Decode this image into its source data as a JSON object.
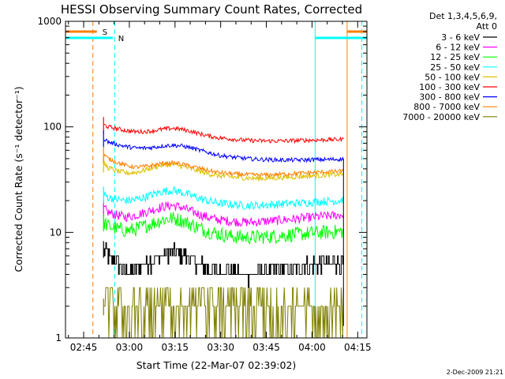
{
  "chart_data": {
    "type": "line",
    "title": "HESSI Observing Summary Count Rates, Corrected",
    "xlabel": "Start Time (22-Mar-07 02:39:02)",
    "ylabel": "Corrected Count Rate (s⁻¹ detector⁻¹)",
    "x_unit": "minutes after 02:39:02",
    "xlim": [
      0,
      99
    ],
    "ylim": [
      1,
      1000
    ],
    "yscale": "log",
    "grid": false,
    "legend_position": "top-right, outside plot",
    "x_ticks": [
      {
        "label": "02:45",
        "min": 5.97
      },
      {
        "label": "03:00",
        "min": 20.97
      },
      {
        "label": "03:15",
        "min": 35.97
      },
      {
        "label": "03:30",
        "min": 50.97
      },
      {
        "label": "03:45",
        "min": 65.97
      },
      {
        "label": "04:00",
        "min": 80.97
      },
      {
        "label": "04:15",
        "min": 95.97
      }
    ],
    "y_ticks": [
      {
        "label": "1",
        "value": 1
      },
      {
        "label": "10",
        "value": 10
      },
      {
        "label": "100",
        "value": 100
      },
      {
        "label": "1000",
        "value": 1000
      }
    ],
    "legend_header": [
      "Det 1,3,4,5,6,9,",
      "Att 0"
    ],
    "data_start_min": 12.5,
    "data_end_min": 91.3,
    "series": [
      {
        "name": "3 - 6 keV",
        "color": "#000000",
        "noise": 0.1,
        "points": [
          [
            12.5,
            7.0
          ],
          [
            14,
            6.0
          ],
          [
            16,
            5.4
          ],
          [
            18,
            4.8
          ],
          [
            20,
            4.4
          ],
          [
            23,
            4.6
          ],
          [
            26,
            5.0
          ],
          [
            29,
            5.5
          ],
          [
            32,
            6.2
          ],
          [
            35,
            6.6
          ],
          [
            38,
            6.2
          ],
          [
            41,
            5.6
          ],
          [
            44,
            5.0
          ],
          [
            47,
            4.6
          ],
          [
            50,
            4.4
          ],
          [
            54,
            4.2
          ],
          [
            58,
            4.0
          ],
          [
            62,
            4.1
          ],
          [
            66,
            4.2
          ],
          [
            70,
            4.4
          ],
          [
            74,
            4.6
          ],
          [
            78,
            4.8
          ],
          [
            82,
            5.0
          ],
          [
            86,
            5.1
          ],
          [
            90,
            5.2
          ],
          [
            91.3,
            5.2
          ]
        ]
      },
      {
        "name": "6 - 12 keV",
        "color": "#ff00ff",
        "noise": 0.045,
        "points": [
          [
            12.5,
            17.0
          ],
          [
            14,
            15.5
          ],
          [
            17,
            14.5
          ],
          [
            20,
            14.0
          ],
          [
            23,
            14.5
          ],
          [
            26,
            15.5
          ],
          [
            29,
            16.5
          ],
          [
            32,
            17.5
          ],
          [
            35,
            18.0
          ],
          [
            38,
            17.3
          ],
          [
            41,
            16.0
          ],
          [
            44,
            14.8
          ],
          [
            47,
            13.8
          ],
          [
            50,
            13.2
          ],
          [
            54,
            12.8
          ],
          [
            58,
            12.5
          ],
          [
            62,
            12.5
          ],
          [
            66,
            12.8
          ],
          [
            70,
            13.0
          ],
          [
            74,
            13.3
          ],
          [
            78,
            13.6
          ],
          [
            82,
            14.0
          ],
          [
            86,
            14.3
          ],
          [
            90,
            14.6
          ],
          [
            91.3,
            14.8
          ]
        ]
      },
      {
        "name": "12 - 25 keV",
        "color": "#00ff00",
        "noise": 0.07,
        "points": [
          [
            12.5,
            12.5
          ],
          [
            14,
            11.5
          ],
          [
            17,
            10.8
          ],
          [
            20,
            10.4
          ],
          [
            23,
            10.7
          ],
          [
            26,
            11.5
          ],
          [
            29,
            12.3
          ],
          [
            32,
            13.2
          ],
          [
            35,
            13.6
          ],
          [
            38,
            13.0
          ],
          [
            41,
            12.0
          ],
          [
            44,
            11.0
          ],
          [
            47,
            10.2
          ],
          [
            50,
            9.7
          ],
          [
            54,
            9.2
          ],
          [
            58,
            9.0
          ],
          [
            62,
            9.0
          ],
          [
            66,
            9.1
          ],
          [
            70,
            9.3
          ],
          [
            74,
            9.5
          ],
          [
            78,
            9.7
          ],
          [
            82,
            9.9
          ],
          [
            86,
            10.0
          ],
          [
            90,
            10.2
          ],
          [
            91.3,
            10.2
          ]
        ]
      },
      {
        "name": "25 - 50 keV",
        "color": "#00ffff",
        "noise": 0.04,
        "points": [
          [
            12.5,
            23.0
          ],
          [
            14,
            21.5
          ],
          [
            17,
            20.5
          ],
          [
            20,
            20.0
          ],
          [
            23,
            20.5
          ],
          [
            26,
            21.5
          ],
          [
            29,
            23.0
          ],
          [
            32,
            24.5
          ],
          [
            35,
            25.0
          ],
          [
            38,
            24.0
          ],
          [
            41,
            22.5
          ],
          [
            44,
            21.0
          ],
          [
            47,
            19.8
          ],
          [
            50,
            19.0
          ],
          [
            54,
            18.5
          ],
          [
            58,
            18.0
          ],
          [
            62,
            18.0
          ],
          [
            66,
            18.2
          ],
          [
            70,
            18.5
          ],
          [
            74,
            18.8
          ],
          [
            78,
            19.0
          ],
          [
            82,
            19.5
          ],
          [
            86,
            19.8
          ],
          [
            90,
            20.0
          ],
          [
            91.3,
            20.5
          ]
        ]
      },
      {
        "name": "50 - 100 keV",
        "color": "#ddc000",
        "noise": 0.025,
        "points": [
          [
            12.5,
            45.0
          ],
          [
            14,
            41.0
          ],
          [
            17,
            38.0
          ],
          [
            20,
            36.5
          ],
          [
            23,
            37.0
          ],
          [
            26,
            39.0
          ],
          [
            29,
            41.5
          ],
          [
            32,
            43.5
          ],
          [
            35,
            44.0
          ],
          [
            38,
            42.5
          ],
          [
            41,
            40.0
          ],
          [
            44,
            38.0
          ],
          [
            47,
            36.0
          ],
          [
            50,
            34.5
          ],
          [
            54,
            33.5
          ],
          [
            58,
            33.0
          ],
          [
            62,
            32.5
          ],
          [
            66,
            32.5
          ],
          [
            70,
            33.0
          ],
          [
            74,
            33.5
          ],
          [
            78,
            34.0
          ],
          [
            82,
            34.5
          ],
          [
            86,
            35.0
          ],
          [
            90,
            35.5
          ],
          [
            91.3,
            35.5
          ]
        ]
      },
      {
        "name": "100 - 300 keV",
        "color": "#ff0000",
        "noise": 0.02,
        "points": [
          [
            12.5,
            105.0
          ],
          [
            14,
            100.0
          ],
          [
            17,
            96.0
          ],
          [
            20,
            92.0
          ],
          [
            23,
            90.0
          ],
          [
            26,
            90.0
          ],
          [
            29,
            92.0
          ],
          [
            32,
            95.0
          ],
          [
            35,
            97.0
          ],
          [
            38,
            95.0
          ],
          [
            41,
            91.0
          ],
          [
            44,
            86.0
          ],
          [
            47,
            82.0
          ],
          [
            50,
            79.0
          ],
          [
            54,
            77.0
          ],
          [
            58,
            75.0
          ],
          [
            62,
            74.0
          ],
          [
            66,
            73.5
          ],
          [
            70,
            73.5
          ],
          [
            74,
            74.0
          ],
          [
            78,
            74.5
          ],
          [
            82,
            75.0
          ],
          [
            86,
            75.5
          ],
          [
            90,
            76.0
          ],
          [
            91.3,
            76.0
          ]
        ]
      },
      {
        "name": "300 - 800 keV",
        "color": "#0000ff",
        "noise": 0.02,
        "points": [
          [
            12.5,
            78.0
          ],
          [
            14,
            72.0
          ],
          [
            17,
            68.0
          ],
          [
            20,
            65.0
          ],
          [
            23,
            63.0
          ],
          [
            26,
            63.0
          ],
          [
            29,
            64.0
          ],
          [
            32,
            66.0
          ],
          [
            35,
            67.0
          ],
          [
            38,
            66.0
          ],
          [
            41,
            63.5
          ],
          [
            44,
            60.0
          ],
          [
            47,
            57.0
          ],
          [
            50,
            54.0
          ],
          [
            54,
            52.0
          ],
          [
            58,
            50.5
          ],
          [
            62,
            49.5
          ],
          [
            66,
            49.0
          ],
          [
            70,
            48.5
          ],
          [
            74,
            48.5
          ],
          [
            78,
            48.5
          ],
          [
            82,
            49.0
          ],
          [
            86,
            49.0
          ],
          [
            90,
            49.5
          ],
          [
            91.3,
            49.5
          ]
        ]
      },
      {
        "name": "800 - 7000 keV",
        "color": "#ff8000",
        "noise": 0.02,
        "points": [
          [
            12.5,
            55.0
          ],
          [
            14,
            50.0
          ],
          [
            17,
            46.0
          ],
          [
            20,
            43.0
          ],
          [
            23,
            41.5
          ],
          [
            26,
            42.0
          ],
          [
            29,
            43.5
          ],
          [
            32,
            45.0
          ],
          [
            35,
            45.5
          ],
          [
            38,
            44.5
          ],
          [
            41,
            42.5
          ],
          [
            44,
            40.5
          ],
          [
            47,
            38.5
          ],
          [
            50,
            37.0
          ],
          [
            54,
            36.0
          ],
          [
            58,
            35.5
          ],
          [
            62,
            35.0
          ],
          [
            66,
            35.0
          ],
          [
            70,
            35.5
          ],
          [
            74,
            36.0
          ],
          [
            78,
            36.5
          ],
          [
            82,
            37.0
          ],
          [
            86,
            37.5
          ],
          [
            90,
            38.0
          ],
          [
            91.3,
            38.0
          ]
        ]
      },
      {
        "name": "7000 - 20000 keV",
        "color": "#808000",
        "noise": 0.0,
        "points": [
          [
            12.5,
            2.0
          ],
          [
            91.3,
            2.0
          ]
        ]
      }
    ],
    "annotations": [
      {
        "label": "S",
        "color": "#ff8000",
        "style": "bar",
        "from_min": 0,
        "to_min": 10.3
      },
      {
        "label": "N",
        "color": "#00ffff",
        "style": "bar",
        "from_min": 0,
        "to_min": 15.5
      },
      {
        "label": "",
        "color": "#00ffff",
        "style": "bar",
        "from_min": 82.0,
        "to_min": 99.0
      },
      {
        "label": "",
        "color": "#ff8000",
        "style": "bar",
        "from_min": 92.5,
        "to_min": 99.0
      }
    ],
    "vertical_markers": [
      {
        "min": 9.0,
        "color": "#ff8000",
        "style": "dashed"
      },
      {
        "min": 16.2,
        "color": "#00ffff",
        "style": "dashed"
      },
      {
        "min": 82.0,
        "color": "#00ffff",
        "style": "solid"
      },
      {
        "min": 92.5,
        "color": "#ff8000",
        "style": "solid"
      },
      {
        "min": 97.3,
        "color": "#00ffff",
        "style": "dashed"
      }
    ]
  },
  "footer": {
    "timestamp": "2-Dec-2009 21:21"
  }
}
